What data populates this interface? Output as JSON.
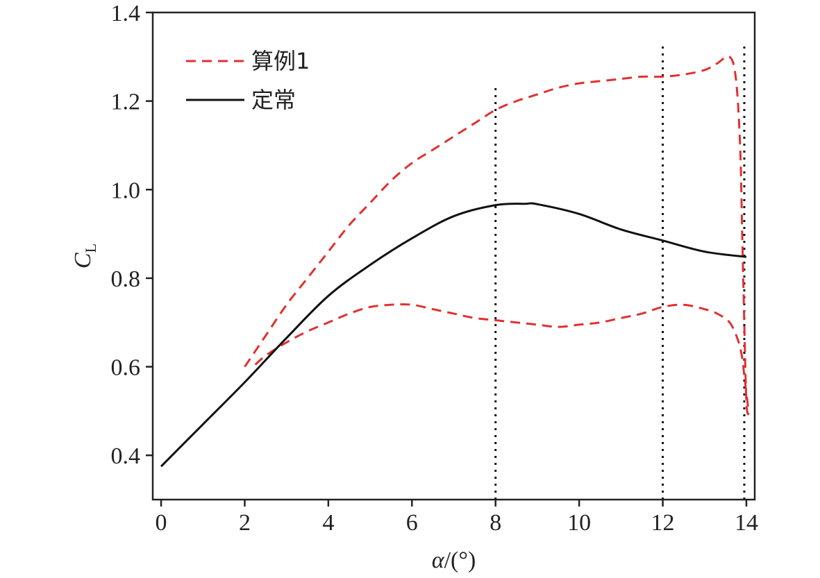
{
  "chart_data": {
    "type": "line",
    "xlabel": "α/(°)",
    "ylabel": {
      "main": "C",
      "sub": "L"
    },
    "xlim": [
      -0.2,
      14.2
    ],
    "ylim": [
      0.3,
      1.4
    ],
    "xticks": [
      0,
      2,
      4,
      6,
      8,
      10,
      12,
      14
    ],
    "yticks": [
      0.4,
      0.6,
      0.8,
      1.0,
      1.2,
      1.4
    ],
    "xtick_labels": [
      "0",
      "2",
      "4",
      "6",
      "8",
      "10",
      "12",
      "14"
    ],
    "ytick_labels": [
      "0.4",
      "0.6",
      "0.8",
      "1.0",
      "1.2",
      "1.4"
    ],
    "grid": false,
    "legend_position": "top-left",
    "vlines": [
      {
        "x": 8,
        "ymax": 1.24
      },
      {
        "x": 12,
        "ymax": 1.33
      },
      {
        "x": 13.95,
        "ymax": 1.33
      }
    ],
    "series": [
      {
        "name": "算例1",
        "color": "#e03030",
        "style": "dashed",
        "x": [
          2.0,
          2.5,
          3.0,
          3.5,
          4.0,
          4.5,
          5.0,
          5.5,
          6.0,
          6.5,
          7.0,
          7.5,
          8.0,
          8.5,
          9.0,
          9.5,
          10.0,
          10.5,
          11.0,
          11.5,
          12.0,
          12.5,
          13.0,
          13.3,
          13.6,
          13.75,
          13.85,
          13.9,
          13.95,
          14.0,
          14.05,
          13.95,
          13.9,
          13.8,
          13.6,
          13.3,
          13.0,
          12.5,
          12.0,
          11.5,
          11.0,
          10.5,
          10.0,
          9.5,
          9.0,
          8.5,
          8.0,
          7.5,
          7.0,
          6.5,
          6.0,
          5.5,
          5.0,
          4.5,
          4.0,
          3.5,
          3.0,
          2.5,
          2.2
        ],
        "y": [
          0.6,
          0.67,
          0.74,
          0.8,
          0.86,
          0.92,
          0.97,
          1.02,
          1.06,
          1.09,
          1.12,
          1.15,
          1.18,
          1.2,
          1.215,
          1.23,
          1.24,
          1.245,
          1.25,
          1.255,
          1.255,
          1.26,
          1.27,
          1.285,
          1.3,
          1.25,
          1.1,
          0.9,
          0.7,
          0.52,
          0.5,
          0.58,
          0.62,
          0.66,
          0.7,
          0.72,
          0.73,
          0.74,
          0.735,
          0.72,
          0.71,
          0.7,
          0.695,
          0.69,
          0.695,
          0.7,
          0.705,
          0.71,
          0.72,
          0.73,
          0.74,
          0.74,
          0.735,
          0.72,
          0.7,
          0.68,
          0.655,
          0.625,
          0.6
        ]
      },
      {
        "name": "定常",
        "color": "#111111",
        "style": "solid",
        "x": [
          0,
          1,
          2,
          3,
          4,
          5,
          6,
          7,
          8,
          8.7,
          9,
          10,
          11,
          12,
          13,
          14
        ],
        "y": [
          0.375,
          0.47,
          0.565,
          0.665,
          0.76,
          0.83,
          0.89,
          0.94,
          0.965,
          0.968,
          0.967,
          0.945,
          0.91,
          0.885,
          0.86,
          0.848
        ]
      }
    ]
  }
}
